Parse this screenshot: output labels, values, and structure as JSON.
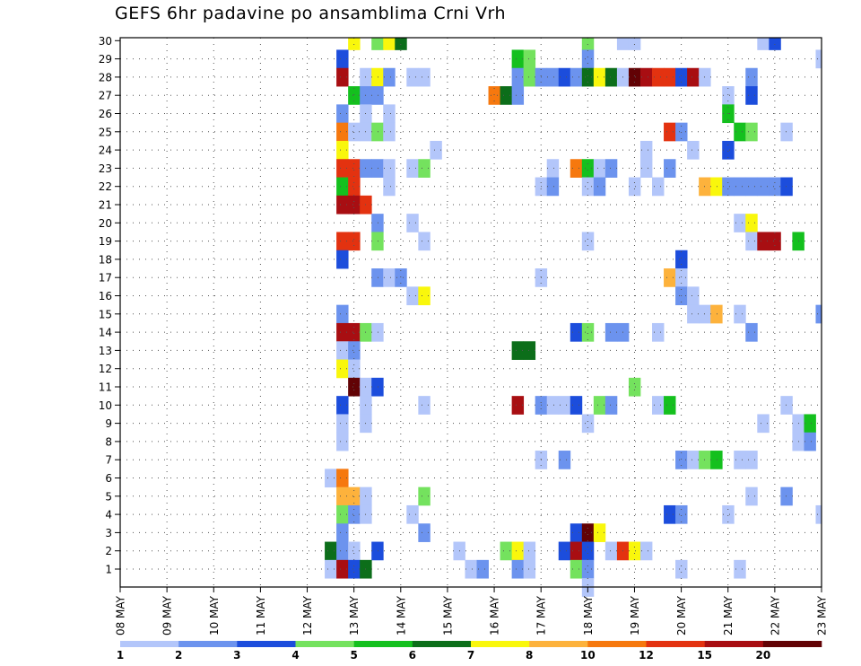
{
  "chart_data": {
    "type": "heatmap",
    "title": "GEFS 6hr padavine po ansamblima Crni Vrh",
    "x_ticks": [
      "08 MAY",
      "09 MAY",
      "10 MAY",
      "11 MAY",
      "12 MAY",
      "13 MAY",
      "14 MAY",
      "15 MAY",
      "16 MAY",
      "17 MAY",
      "18 MAY",
      "19 MAY",
      "20 MAY",
      "21 MAY",
      "22 MAY",
      "23 MAY"
    ],
    "y_members": [
      1,
      2,
      3,
      4,
      5,
      6,
      7,
      8,
      9,
      10,
      11,
      12,
      13,
      14,
      15,
      16,
      17,
      18,
      19,
      20,
      21,
      22,
      23,
      24,
      25,
      26,
      27,
      28,
      29,
      30
    ],
    "legend": {
      "levels": [
        1,
        2,
        3,
        4,
        5,
        6,
        7,
        8,
        10,
        12,
        15,
        20
      ],
      "colors": [
        "#b3c6fa",
        "#6c93ee",
        "#1c4ddc",
        "#74e25e",
        "#14c01e",
        "#0c6e1a",
        "#f9f70c",
        "#fdb23c",
        "#f6780e",
        "#e33210",
        "#a80e12",
        "#620205"
      ]
    },
    "grid": true,
    "cells": [
      [
        30,
        13.0,
        7
      ],
      [
        30,
        13.5,
        4
      ],
      [
        30,
        13.75,
        7
      ],
      [
        30,
        14.0,
        6
      ],
      [
        30,
        18.0,
        4
      ],
      [
        30,
        18.75,
        1
      ],
      [
        30,
        19.0,
        1
      ],
      [
        30,
        21.75,
        1
      ],
      [
        30,
        22.0,
        3
      ],
      [
        29,
        12.75,
        3
      ],
      [
        29,
        16.5,
        5
      ],
      [
        29,
        16.75,
        4
      ],
      [
        29,
        18.0,
        2
      ],
      [
        29,
        23.0,
        1
      ],
      [
        28,
        12.75,
        11
      ],
      [
        28,
        13.25,
        1
      ],
      [
        28,
        13.5,
        7
      ],
      [
        28,
        13.75,
        2
      ],
      [
        28,
        14.25,
        1
      ],
      [
        28,
        14.5,
        1
      ],
      [
        28,
        16.5,
        2
      ],
      [
        28,
        16.75,
        4
      ],
      [
        28,
        17.0,
        2
      ],
      [
        28,
        17.25,
        2
      ],
      [
        28,
        17.5,
        3
      ],
      [
        28,
        17.75,
        2
      ],
      [
        28,
        18.0,
        6
      ],
      [
        28,
        18.25,
        7
      ],
      [
        28,
        18.5,
        6
      ],
      [
        28,
        18.75,
        1
      ],
      [
        28,
        19.0,
        12
      ],
      [
        28,
        19.25,
        11
      ],
      [
        28,
        19.5,
        10
      ],
      [
        28,
        19.75,
        10
      ],
      [
        28,
        20.0,
        3
      ],
      [
        28,
        20.25,
        11
      ],
      [
        28,
        20.5,
        1
      ],
      [
        28,
        21.5,
        2
      ],
      [
        27,
        13.0,
        5
      ],
      [
        27,
        13.25,
        2
      ],
      [
        27,
        13.5,
        2
      ],
      [
        27,
        16.0,
        9
      ],
      [
        27,
        16.25,
        6
      ],
      [
        27,
        16.5,
        2
      ],
      [
        27,
        21.0,
        1
      ],
      [
        27,
        21.5,
        3
      ],
      [
        26,
        12.75,
        2
      ],
      [
        26,
        13.25,
        1
      ],
      [
        26,
        13.75,
        1
      ],
      [
        26,
        21.0,
        5
      ],
      [
        25,
        12.75,
        9
      ],
      [
        25,
        13.0,
        1
      ],
      [
        25,
        13.25,
        1
      ],
      [
        25,
        13.5,
        4
      ],
      [
        25,
        13.75,
        1
      ],
      [
        25,
        19.75,
        10
      ],
      [
        25,
        20.0,
        2
      ],
      [
        25,
        21.25,
        5
      ],
      [
        25,
        21.5,
        4
      ],
      [
        25,
        22.25,
        1
      ],
      [
        24,
        12.75,
        7
      ],
      [
        24,
        14.75,
        1
      ],
      [
        24,
        19.25,
        1
      ],
      [
        24,
        20.25,
        1
      ],
      [
        24,
        21.0,
        3
      ],
      [
        23,
        12.75,
        10
      ],
      [
        23,
        13.0,
        10
      ],
      [
        23,
        13.25,
        2
      ],
      [
        23,
        13.5,
        2
      ],
      [
        23,
        13.75,
        1
      ],
      [
        23,
        14.25,
        1
      ],
      [
        23,
        14.5,
        4
      ],
      [
        23,
        17.25,
        1
      ],
      [
        23,
        17.75,
        9
      ],
      [
        23,
        18.0,
        5
      ],
      [
        23,
        18.25,
        1
      ],
      [
        23,
        18.5,
        2
      ],
      [
        23,
        19.25,
        1
      ],
      [
        23,
        19.75,
        2
      ],
      [
        22,
        12.75,
        5
      ],
      [
        22,
        13.0,
        10
      ],
      [
        22,
        13.75,
        1
      ],
      [
        22,
        17.0,
        1
      ],
      [
        22,
        17.25,
        2
      ],
      [
        22,
        18.0,
        1
      ],
      [
        22,
        18.25,
        2
      ],
      [
        22,
        19.0,
        1
      ],
      [
        22,
        19.5,
        1
      ],
      [
        22,
        20.5,
        8
      ],
      [
        22,
        20.75,
        7
      ],
      [
        22,
        21.0,
        2
      ],
      [
        22,
        21.25,
        2
      ],
      [
        22,
        21.5,
        2
      ],
      [
        22,
        21.75,
        2
      ],
      [
        22,
        22.0,
        2
      ],
      [
        22,
        22.25,
        3
      ],
      [
        21,
        12.75,
        11
      ],
      [
        21,
        13.0,
        11
      ],
      [
        21,
        13.25,
        10
      ],
      [
        20,
        13.5,
        2
      ],
      [
        20,
        14.25,
        1
      ],
      [
        20,
        21.25,
        1
      ],
      [
        20,
        21.5,
        7
      ],
      [
        19,
        12.75,
        10
      ],
      [
        19,
        13.0,
        10
      ],
      [
        19,
        13.5,
        4
      ],
      [
        19,
        14.5,
        1
      ],
      [
        19,
        18.0,
        1
      ],
      [
        19,
        21.5,
        1
      ],
      [
        19,
        21.75,
        11
      ],
      [
        19,
        22.0,
        11
      ],
      [
        19,
        22.5,
        5
      ],
      [
        18,
        12.75,
        3
      ],
      [
        18,
        20.0,
        3
      ],
      [
        17,
        13.5,
        2
      ],
      [
        17,
        13.75,
        1
      ],
      [
        17,
        14.0,
        2
      ],
      [
        17,
        17.0,
        1
      ],
      [
        17,
        19.75,
        8
      ],
      [
        17,
        20.0,
        1
      ],
      [
        16,
        14.25,
        1
      ],
      [
        16,
        14.5,
        7
      ],
      [
        16,
        20.0,
        2
      ],
      [
        16,
        20.25,
        1
      ],
      [
        15,
        12.75,
        2
      ],
      [
        15,
        20.25,
        1
      ],
      [
        15,
        20.5,
        1
      ],
      [
        15,
        20.75,
        8
      ],
      [
        15,
        21.25,
        1
      ],
      [
        15,
        23.0,
        2
      ],
      [
        14,
        12.75,
        11
      ],
      [
        14,
        13.0,
        11
      ],
      [
        14,
        13.25,
        4
      ],
      [
        14,
        13.5,
        1
      ],
      [
        14,
        17.75,
        3
      ],
      [
        14,
        18.0,
        4
      ],
      [
        14,
        18.5,
        2
      ],
      [
        14,
        18.75,
        2
      ],
      [
        14,
        19.5,
        1
      ],
      [
        14,
        21.5,
        2
      ],
      [
        13,
        12.75,
        1
      ],
      [
        13,
        13.0,
        2
      ],
      [
        13,
        16.5,
        6
      ],
      [
        13,
        16.75,
        6
      ],
      [
        12,
        12.75,
        7
      ],
      [
        12,
        13.0,
        1
      ],
      [
        11,
        13.0,
        12
      ],
      [
        11,
        13.25,
        1
      ],
      [
        11,
        13.5,
        3
      ],
      [
        11,
        19.0,
        4
      ],
      [
        10,
        12.75,
        3
      ],
      [
        10,
        13.25,
        1
      ],
      [
        10,
        14.5,
        1
      ],
      [
        10,
        16.5,
        11
      ],
      [
        10,
        17.0,
        2
      ],
      [
        10,
        17.25,
        1
      ],
      [
        10,
        17.5,
        1
      ],
      [
        10,
        17.75,
        3
      ],
      [
        10,
        18.25,
        4
      ],
      [
        10,
        18.5,
        2
      ],
      [
        10,
        19.5,
        1
      ],
      [
        10,
        19.75,
        5
      ],
      [
        10,
        22.25,
        1
      ],
      [
        9,
        12.75,
        1
      ],
      [
        9,
        13.25,
        1
      ],
      [
        9,
        18.0,
        1
      ],
      [
        9,
        21.75,
        1
      ],
      [
        9,
        22.5,
        1
      ],
      [
        9,
        22.75,
        5
      ],
      [
        8,
        12.75,
        1
      ],
      [
        8,
        22.5,
        1
      ],
      [
        8,
        22.75,
        2
      ],
      [
        7,
        17.0,
        1
      ],
      [
        7,
        17.5,
        2
      ],
      [
        7,
        20.0,
        2
      ],
      [
        7,
        20.25,
        1
      ],
      [
        7,
        20.5,
        4
      ],
      [
        7,
        20.75,
        5
      ],
      [
        7,
        21.25,
        1
      ],
      [
        7,
        21.5,
        1
      ],
      [
        6,
        12.5,
        1
      ],
      [
        6,
        12.75,
        9
      ],
      [
        5,
        12.75,
        8
      ],
      [
        5,
        13.0,
        8
      ],
      [
        5,
        13.25,
        1
      ],
      [
        5,
        14.5,
        4
      ],
      [
        5,
        21.5,
        1
      ],
      [
        5,
        22.25,
        2
      ],
      [
        4,
        12.75,
        4
      ],
      [
        4,
        13.0,
        2
      ],
      [
        4,
        13.25,
        1
      ],
      [
        4,
        14.25,
        1
      ],
      [
        4,
        19.75,
        3
      ],
      [
        4,
        20.0,
        2
      ],
      [
        4,
        21.0,
        1
      ],
      [
        4,
        23.0,
        1
      ],
      [
        3,
        12.75,
        2
      ],
      [
        3,
        14.5,
        2
      ],
      [
        3,
        17.75,
        3
      ],
      [
        3,
        18.0,
        12
      ],
      [
        3,
        18.25,
        7
      ],
      [
        2,
        12.5,
        6
      ],
      [
        2,
        12.75,
        2
      ],
      [
        2,
        13.0,
        1
      ],
      [
        2,
        13.5,
        3
      ],
      [
        2,
        15.25,
        1
      ],
      [
        2,
        16.25,
        4
      ],
      [
        2,
        16.5,
        7
      ],
      [
        2,
        16.75,
        1
      ],
      [
        2,
        17.5,
        3
      ],
      [
        2,
        17.75,
        11
      ],
      [
        2,
        18.0,
        3
      ],
      [
        2,
        18.5,
        1
      ],
      [
        2,
        18.75,
        10
      ],
      [
        2,
        19.0,
        7
      ],
      [
        2,
        19.25,
        1
      ],
      [
        1,
        12.5,
        1
      ],
      [
        1,
        12.75,
        11
      ],
      [
        1,
        13.0,
        3
      ],
      [
        1,
        13.25,
        6
      ],
      [
        1,
        15.5,
        1
      ],
      [
        1,
        15.75,
        2
      ],
      [
        1,
        16.5,
        2
      ],
      [
        1,
        16.75,
        1
      ],
      [
        1,
        17.75,
        4
      ],
      [
        1,
        18.0,
        2
      ],
      [
        1,
        20.0,
        1
      ],
      [
        1,
        21.25,
        1
      ],
      [
        0,
        18.0,
        1
      ]
    ]
  }
}
